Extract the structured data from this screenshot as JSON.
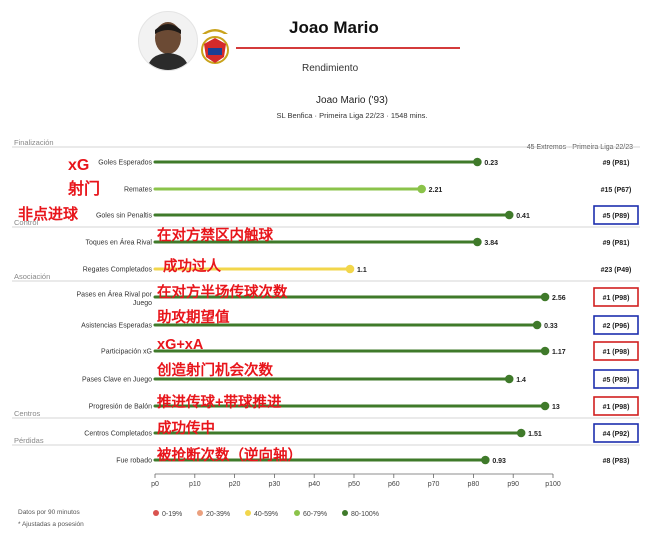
{
  "header": {
    "player_name": "Joao Mario",
    "subtitle": "Rendimiento"
  },
  "chart_data": {
    "type": "lollipop",
    "title": "Joao Mario ('93)",
    "subtitle": "SL Benfica · Primeira Liga 22/23 · 1548 mins.",
    "comparison_label": "45 Extremos · Primeira Liga 22/23",
    "xlabel": "",
    "ylabel": "",
    "xlim": [
      0,
      100
    ],
    "x_ticks": [
      "p0",
      "p10",
      "p20",
      "p30",
      "p40",
      "p50",
      "p60",
      "p70",
      "p80",
      "p90",
      "p100"
    ],
    "grid": false,
    "sections": [
      {
        "label": "Finalización",
        "before_row": 0
      },
      {
        "label": "Control",
        "before_row": 3
      },
      {
        "label": "Asociación",
        "before_row": 5
      },
      {
        "label": "Centros",
        "before_row": 11
      },
      {
        "label": "Pérdidas",
        "before_row": 12
      }
    ],
    "rows": [
      {
        "label": "Goles Esperados",
        "value": "0.23",
        "percentile": 81,
        "rank": "#9 (P81)",
        "annotation": "xG",
        "boxed": false,
        "color": "#3f7a2a"
      },
      {
        "label": "Remates",
        "value": "2.21",
        "percentile": 67,
        "rank": "#15 (P67)",
        "annotation": "射门",
        "boxed": false,
        "color": "#8bc34a"
      },
      {
        "label": "Goles sin Penaltis",
        "value": "0.41",
        "percentile": 89,
        "rank": "#5 (P89)",
        "annotation": "非点进球",
        "boxed": true,
        "box_color": "#1d2fae",
        "color": "#3f7a2a"
      },
      {
        "label": "Toques en Área Rival",
        "value": "3.84",
        "percentile": 81,
        "rank": "#9 (P81)",
        "annotation": "在对方禁区内触球",
        "boxed": false,
        "color": "#3f7a2a"
      },
      {
        "label": "Regates Completados",
        "value": "1.1",
        "percentile": 49,
        "rank": "#23 (P49)",
        "annotation": "成功过人",
        "boxed": false,
        "color": "#f2d64b"
      },
      {
        "label": "Pases en Área Rival por Juego",
        "value": "2.56",
        "percentile": 98,
        "rank": "#1 (P98)",
        "annotation": "在对方半场传球次数",
        "boxed": true,
        "box_color": "#d11f1f",
        "color": "#3f7a2a"
      },
      {
        "label": "Asistencias Esperadas",
        "value": "0.33",
        "percentile": 96,
        "rank": "#2 (P96)",
        "annotation": "助攻期望值",
        "boxed": true,
        "box_color": "#1d2fae",
        "color": "#3f7a2a"
      },
      {
        "label": "Participación xG",
        "value": "1.17",
        "percentile": 98,
        "rank": "#1 (P98)",
        "annotation": "xG+xA",
        "boxed": true,
        "box_color": "#d11f1f",
        "color": "#3f7a2a"
      },
      {
        "label": "Pases Clave en Juego",
        "value": "1.4",
        "percentile": 89,
        "rank": "#5 (P89)",
        "annotation": "创造射门机会次数",
        "boxed": true,
        "box_color": "#1d2fae",
        "color": "#3f7a2a"
      },
      {
        "label": "Progresión de Balón",
        "value": "13",
        "percentile": 98,
        "rank": "#1 (P98)",
        "annotation": "推进传球+带球推进",
        "boxed": true,
        "box_color": "#d11f1f",
        "color": "#3f7a2a"
      },
      {
        "label": "Centros Completados",
        "value": "1.51",
        "percentile": 92,
        "rank": "#4 (P92)",
        "annotation": "成功传中",
        "boxed": true,
        "box_color": "#1d2fae",
        "color": "#3f7a2a"
      },
      {
        "label": "Fue robado",
        "value": "0.93",
        "percentile": 83,
        "rank": "#8 (P83)",
        "annotation": "被抢断次数（逆向轴）",
        "boxed": false,
        "color": "#3f7a2a"
      }
    ],
    "legend": [
      {
        "label": "0-19%",
        "color": "#d9534f"
      },
      {
        "label": "20-39%",
        "color": "#eba07e"
      },
      {
        "label": "40-59%",
        "color": "#f2d64b"
      },
      {
        "label": "60-79%",
        "color": "#8bc34a"
      },
      {
        "label": "80-100%",
        "color": "#3f7a2a"
      }
    ],
    "footnotes": [
      "Datos por 90 minutos",
      "* Ajustadas a posesión"
    ]
  }
}
